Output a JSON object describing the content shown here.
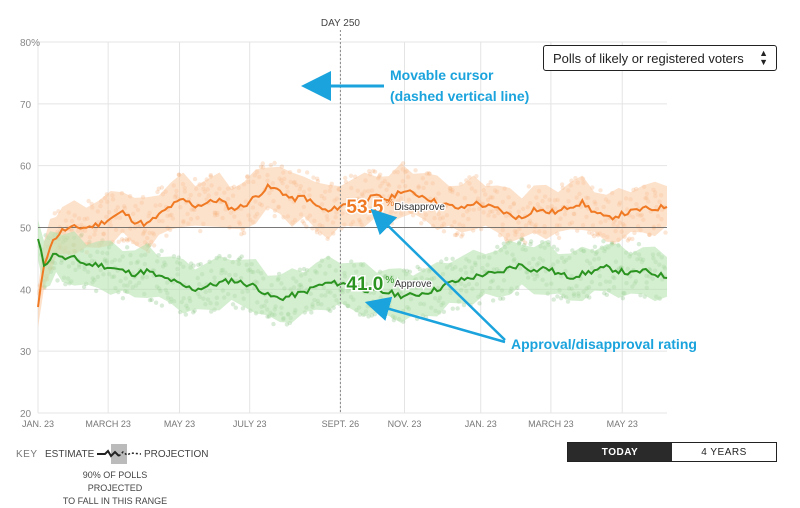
{
  "controls": {
    "poll_filter": "Polls of likely or registered voters",
    "range_options": [
      "TODAY",
      "4 YEARS"
    ]
  },
  "key": {
    "label": "KEY",
    "estimate": "ESTIMATE",
    "projection": "PROJECTION",
    "note_line1": "90% OF POLLS PROJECTED",
    "note_line2": "TO FALL IN THIS RANGE"
  },
  "annotations": {
    "cursor_title": "Movable cursor",
    "cursor_subtitle": "(dashed vertical line)",
    "rating": "Approval/disapproval rating"
  },
  "colors": {
    "disapprove": "#f07a24",
    "approve": "#2b9320",
    "disapprove_band": "#f9c9a0",
    "approve_band": "#b8e2b0",
    "annotation": "#1aa3dc",
    "grid": "#e4e4e4",
    "cursor": "#888888"
  },
  "chart_data": {
    "type": "line",
    "x_ticks": [
      "JAN. 23",
      "MARCH 23",
      "MAY 23",
      "JULY 23",
      "SEPT. 26",
      "NOV. 23",
      "JAN. 23",
      "MARCH 23",
      "MAY 23"
    ],
    "y_ticks": [
      "20",
      "30",
      "40",
      "50",
      "60",
      "70",
      "80%"
    ],
    "ylim": [
      20,
      80
    ],
    "day_range": [
      0,
      520
    ],
    "cursor_label": "DAY 250",
    "cursor_day": 250,
    "grid": true,
    "series": [
      {
        "name": "Disapprove",
        "cursor_value": "53.5",
        "unit": "%",
        "days": [
          0,
          5,
          10,
          15,
          20,
          30,
          40,
          50,
          60,
          70,
          80,
          90,
          100,
          110,
          120,
          130,
          140,
          150,
          160,
          170,
          180,
          190,
          200,
          210,
          220,
          230,
          240,
          250,
          260,
          270,
          280,
          290,
          300,
          310,
          320,
          330,
          340,
          350,
          360,
          370,
          380,
          390,
          400,
          410,
          420,
          430,
          440,
          450,
          460,
          470,
          480,
          490,
          500,
          510,
          520
        ],
        "values": [
          37,
          44,
          47,
          48.5,
          49.5,
          50,
          50,
          50.5,
          51.5,
          52.5,
          51,
          50.5,
          52,
          53.5,
          54.5,
          53.5,
          54,
          54.5,
          53,
          53.5,
          55,
          56.5,
          56,
          54.5,
          55,
          53.5,
          52.5,
          53.5,
          54,
          54.5,
          55,
          54.5,
          56,
          55.5,
          55,
          54,
          53.5,
          53,
          54,
          53.5,
          53,
          52,
          51.5,
          53,
          52.5,
          52.5,
          53.5,
          54,
          52.5,
          51.5,
          52,
          52.5,
          53,
          53,
          53.5
        ]
      },
      {
        "name": "Approve",
        "cursor_value": "41.0",
        "unit": "%",
        "days": [
          0,
          5,
          10,
          15,
          20,
          30,
          40,
          50,
          60,
          70,
          80,
          90,
          100,
          110,
          120,
          130,
          140,
          150,
          160,
          170,
          180,
          190,
          200,
          210,
          220,
          230,
          240,
          250,
          260,
          270,
          280,
          290,
          300,
          310,
          320,
          330,
          340,
          350,
          360,
          370,
          380,
          390,
          400,
          410,
          420,
          430,
          440,
          450,
          460,
          470,
          480,
          490,
          500,
          510,
          520
        ],
        "values": [
          48,
          44,
          45,
          46,
          45,
          45,
          44,
          44,
          43.5,
          43,
          42.5,
          43,
          42,
          41.5,
          40.5,
          40,
          40.5,
          41,
          41.5,
          41,
          40.5,
          39,
          38.5,
          39,
          39.5,
          40.5,
          41,
          41,
          40.5,
          40,
          39.5,
          39.5,
          39,
          39,
          39.5,
          40,
          41,
          41.5,
          42,
          42.5,
          42.5,
          43.5,
          44,
          43,
          43.5,
          42.5,
          42,
          42.5,
          43,
          43.5,
          43,
          42.5,
          43,
          42.5,
          42
        ]
      }
    ]
  }
}
